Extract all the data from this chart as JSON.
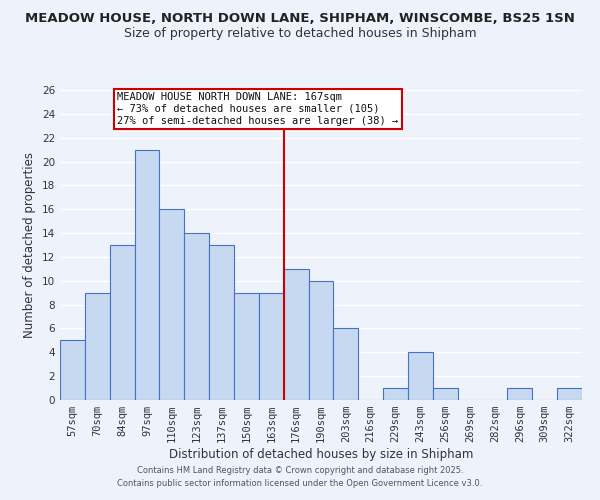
{
  "title": "MEADOW HOUSE, NORTH DOWN LANE, SHIPHAM, WINSCOMBE, BS25 1SN",
  "subtitle": "Size of property relative to detached houses in Shipham",
  "xlabel": "Distribution of detached houses by size in Shipham",
  "ylabel": "Number of detached properties",
  "bar_labels": [
    "57sqm",
    "70sqm",
    "84sqm",
    "97sqm",
    "110sqm",
    "123sqm",
    "137sqm",
    "150sqm",
    "163sqm",
    "176sqm",
    "190sqm",
    "203sqm",
    "216sqm",
    "229sqm",
    "243sqm",
    "256sqm",
    "269sqm",
    "282sqm",
    "296sqm",
    "309sqm",
    "322sqm"
  ],
  "bar_values": [
    5,
    9,
    13,
    21,
    16,
    14,
    13,
    9,
    9,
    11,
    10,
    6,
    0,
    1,
    4,
    1,
    0,
    0,
    1,
    0,
    1
  ],
  "bar_color": "#c6d9f1",
  "bar_edge_color": "#4472c4",
  "vline_x": 8.5,
  "vline_color": "#cc0000",
  "ylim": [
    0,
    26
  ],
  "yticks": [
    0,
    2,
    4,
    6,
    8,
    10,
    12,
    14,
    16,
    18,
    20,
    22,
    24,
    26
  ],
  "annotation_title": "MEADOW HOUSE NORTH DOWN LANE: 167sqm",
  "annotation_line1": "← 73% of detached houses are smaller (105)",
  "annotation_line2": "27% of semi-detached houses are larger (38) →",
  "footer_line1": "Contains HM Land Registry data © Crown copyright and database right 2025.",
  "footer_line2": "Contains public sector information licensed under the Open Government Licence v3.0.",
  "bg_color": "#eef2fb",
  "grid_color": "#ffffff",
  "title_fontsize": 9.5,
  "subtitle_fontsize": 9,
  "axis_label_fontsize": 8.5,
  "tick_fontsize": 7.5,
  "footer_fontsize": 6.0
}
